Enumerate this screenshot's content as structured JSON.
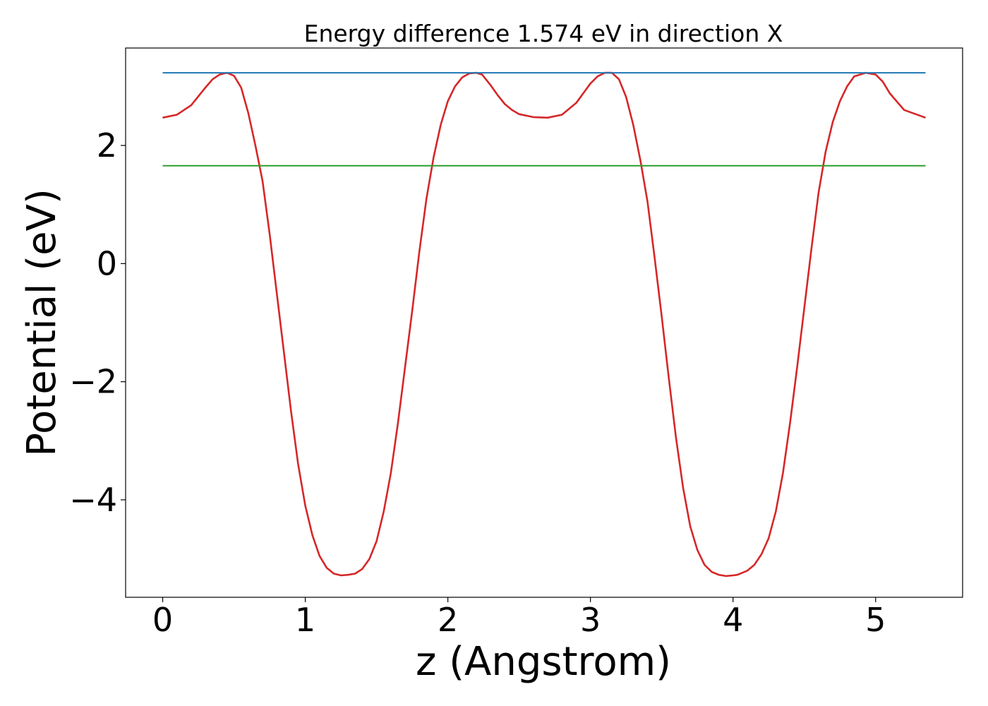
{
  "chart_data": {
    "type": "line",
    "title": "Energy difference 1.574 eV in direction X",
    "xlabel": "z (Angstrom)",
    "ylabel": "Potential (eV)",
    "xlim": [
      -0.26,
      5.61
    ],
    "ylim": [
      -5.65,
      3.65
    ],
    "x_ticks": [
      0,
      1,
      2,
      3,
      4,
      5
    ],
    "x_tick_labels": [
      "0",
      "1",
      "2",
      "3",
      "4",
      "5"
    ],
    "y_ticks": [
      -4,
      -2,
      0,
      2
    ],
    "y_tick_labels": [
      "−4",
      "−2",
      "0",
      "2"
    ],
    "grid": false,
    "legend": "none",
    "series": [
      {
        "color": "#d62728",
        "x": [
          0.0,
          0.1,
          0.2,
          0.3,
          0.35,
          0.4,
          0.45,
          0.5,
          0.55,
          0.6,
          0.65,
          0.7,
          0.75,
          0.8,
          0.85,
          0.9,
          0.95,
          1.0,
          1.05,
          1.1,
          1.15,
          1.2,
          1.25,
          1.3,
          1.35,
          1.4,
          1.45,
          1.5,
          1.55,
          1.6,
          1.65,
          1.7,
          1.75,
          1.8,
          1.85,
          1.9,
          1.95,
          2.0,
          2.05,
          2.1,
          2.15,
          2.2,
          2.24,
          2.3,
          2.35,
          2.4,
          2.45,
          2.5,
          2.6,
          2.7,
          2.8,
          2.9,
          3.0,
          3.05,
          3.1,
          3.15,
          3.2,
          3.25,
          3.3,
          3.35,
          3.4,
          3.45,
          3.5,
          3.55,
          3.6,
          3.65,
          3.7,
          3.75,
          3.8,
          3.85,
          3.9,
          3.95,
          4.0,
          4.03,
          4.1,
          4.15,
          4.2,
          4.25,
          4.3,
          4.35,
          4.4,
          4.45,
          4.5,
          4.55,
          4.6,
          4.65,
          4.7,
          4.75,
          4.8,
          4.85,
          4.93,
          5.0,
          5.05,
          5.1,
          5.2,
          5.35
        ],
        "y": [
          2.47,
          2.52,
          2.68,
          2.98,
          3.12,
          3.2,
          3.23,
          3.18,
          2.98,
          2.55,
          2.0,
          1.4,
          0.5,
          -0.5,
          -1.5,
          -2.5,
          -3.4,
          -4.1,
          -4.6,
          -4.95,
          -5.15,
          -5.25,
          -5.28,
          -5.27,
          -5.25,
          -5.17,
          -5.0,
          -4.7,
          -4.2,
          -3.55,
          -2.7,
          -1.75,
          -0.8,
          0.2,
          1.1,
          1.8,
          2.35,
          2.75,
          3.0,
          3.15,
          3.22,
          3.23,
          3.2,
          3.02,
          2.85,
          2.7,
          2.6,
          2.53,
          2.48,
          2.47,
          2.52,
          2.72,
          3.05,
          3.17,
          3.23,
          3.23,
          3.12,
          2.82,
          2.35,
          1.75,
          1.05,
          0.1,
          -0.9,
          -1.95,
          -2.95,
          -3.8,
          -4.45,
          -4.85,
          -5.1,
          -5.22,
          -5.27,
          -5.29,
          -5.28,
          -5.27,
          -5.2,
          -5.1,
          -4.92,
          -4.65,
          -4.2,
          -3.55,
          -2.7,
          -1.75,
          -0.75,
          0.25,
          1.2,
          1.9,
          2.4,
          2.75,
          3.0,
          3.17,
          3.23,
          3.2,
          3.08,
          2.88,
          2.6,
          2.47
        ]
      },
      {
        "color": "#1f77b4",
        "x": [
          0.0,
          5.35
        ],
        "y": [
          3.23,
          3.23
        ]
      },
      {
        "color": "#2ca02c",
        "x": [
          0.0,
          5.35
        ],
        "y": [
          1.656,
          1.656
        ]
      }
    ]
  }
}
